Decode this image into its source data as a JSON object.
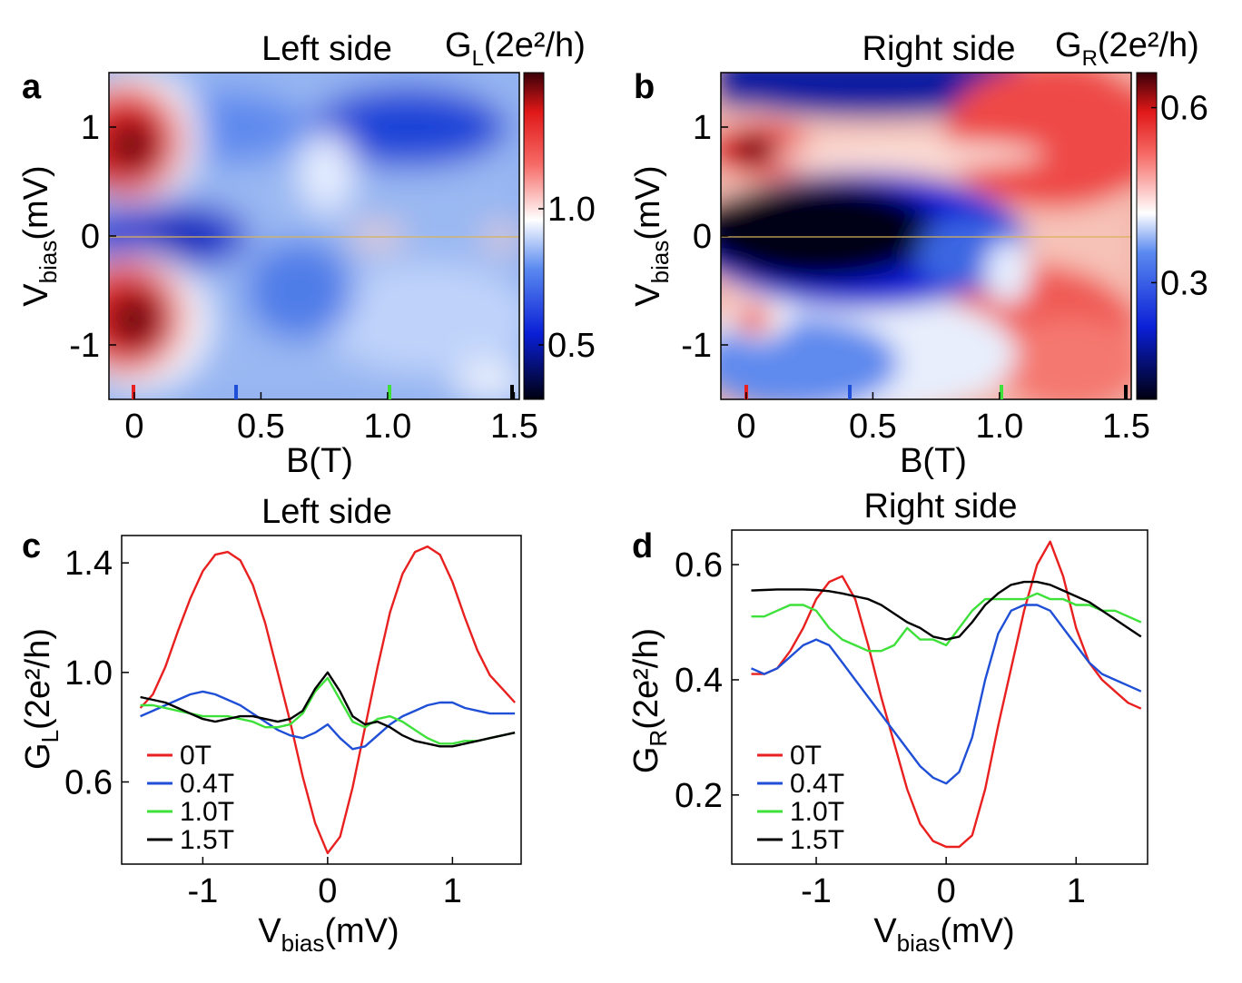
{
  "figure": {
    "panels": [
      "a",
      "b",
      "c",
      "d"
    ]
  },
  "colors": {
    "red": "#e8201f",
    "blue": "#1f4fd6",
    "green": "#3ee03a",
    "black": "#000000"
  },
  "chart_data": [
    {
      "panel": "a",
      "type": "heatmap",
      "title": "Left side",
      "xlabel": "B(T)",
      "ylabel_main": "V",
      "ylabel_sub": "bias",
      "ylabel_unit": "(mV)",
      "xlim": [
        -0.1,
        1.52
      ],
      "ylim": [
        -1.5,
        1.5
      ],
      "xticks": [
        "0",
        "0.5",
        "1.0",
        "1.5"
      ],
      "xtick_values": [
        0,
        0.5,
        1.0,
        1.5
      ],
      "yticks": [
        "1",
        "0",
        "-1"
      ],
      "ytick_values": [
        1,
        0,
        -1
      ],
      "colorbar_label_main": "G",
      "colorbar_label_sub": "L",
      "colorbar_label_unit": "(2e²/h)",
      "colorbar_range": [
        0.3,
        1.5
      ],
      "colorbar_ticks": [
        "1.0",
        "0.5"
      ],
      "colorbar_tick_values": [
        1.0,
        0.5
      ],
      "marker_fields": [
        0,
        0.4,
        1.0,
        1.5
      ],
      "zero_peak_height": 1.0,
      "coherence_peak_height": 1.45
    },
    {
      "panel": "b",
      "type": "heatmap",
      "title": "Right side",
      "xlabel": "B(T)",
      "ylabel_main": "V",
      "ylabel_sub": "bias",
      "ylabel_unit": "(mV)",
      "xlim": [
        -0.1,
        1.52
      ],
      "ylim": [
        -1.5,
        1.5
      ],
      "xticks": [
        "0",
        "0.5",
        "1.0",
        "1.5"
      ],
      "xtick_values": [
        0,
        0.5,
        1.0,
        1.5
      ],
      "yticks": [
        "1",
        "0",
        "-1"
      ],
      "ytick_values": [
        1,
        0,
        -1
      ],
      "colorbar_label_main": "G",
      "colorbar_label_sub": "R",
      "colorbar_label_unit": "(2e²/h)",
      "colorbar_range": [
        0.1,
        0.66
      ],
      "colorbar_ticks": [
        "0.6",
        "0.3"
      ],
      "colorbar_tick_values": [
        0.6,
        0.3
      ],
      "marker_fields": [
        0,
        0.4,
        1.0,
        1.5
      ]
    },
    {
      "panel": "c",
      "type": "line",
      "title": "Left side",
      "xlabel_main": "V",
      "xlabel_sub": "bias",
      "xlabel_unit": "(mV)",
      "ylabel_main": "G",
      "ylabel_sub": "L",
      "ylabel_unit": "(2e²/h)",
      "xlim": [
        -1.65,
        1.55
      ],
      "ylim": [
        0.3,
        1.5
      ],
      "xticks": [
        "-1",
        "0",
        "1"
      ],
      "xtick_values": [
        -1,
        0,
        1
      ],
      "yticks": [
        "1.4",
        "1.0",
        "0.6"
      ],
      "ytick_values": [
        1.4,
        1.0,
        0.6
      ],
      "legend_position": "lower-left",
      "series": [
        {
          "name": "0T",
          "color": "#e8201f",
          "x": [
            -1.5,
            -1.4,
            -1.3,
            -1.2,
            -1.1,
            -1.0,
            -0.9,
            -0.8,
            -0.7,
            -0.6,
            -0.5,
            -0.4,
            -0.3,
            -0.2,
            -0.1,
            0.0,
            0.1,
            0.2,
            0.3,
            0.4,
            0.5,
            0.6,
            0.7,
            0.8,
            0.9,
            1.0,
            1.1,
            1.2,
            1.3,
            1.4,
            1.5
          ],
          "y": [
            0.87,
            0.92,
            1.02,
            1.15,
            1.27,
            1.37,
            1.43,
            1.44,
            1.41,
            1.32,
            1.18,
            1.0,
            0.82,
            0.62,
            0.45,
            0.34,
            0.4,
            0.58,
            0.8,
            1.02,
            1.22,
            1.36,
            1.44,
            1.46,
            1.43,
            1.33,
            1.2,
            1.08,
            0.99,
            0.94,
            0.89
          ]
        },
        {
          "name": "0.4T",
          "color": "#1f4fd6",
          "x": [
            -1.5,
            -1.4,
            -1.3,
            -1.2,
            -1.1,
            -1.0,
            -0.9,
            -0.8,
            -0.7,
            -0.6,
            -0.5,
            -0.4,
            -0.3,
            -0.2,
            -0.1,
            0.0,
            0.1,
            0.2,
            0.3,
            0.4,
            0.5,
            0.6,
            0.7,
            0.8,
            0.9,
            1.0,
            1.1,
            1.2,
            1.3,
            1.4,
            1.5
          ],
          "y": [
            0.84,
            0.86,
            0.88,
            0.9,
            0.92,
            0.93,
            0.92,
            0.9,
            0.88,
            0.85,
            0.82,
            0.79,
            0.77,
            0.76,
            0.78,
            0.81,
            0.76,
            0.72,
            0.73,
            0.77,
            0.81,
            0.84,
            0.86,
            0.88,
            0.89,
            0.89,
            0.87,
            0.86,
            0.85,
            0.85,
            0.85
          ]
        },
        {
          "name": "1.0T",
          "color": "#3ee03a",
          "x": [
            -1.5,
            -1.4,
            -1.3,
            -1.2,
            -1.1,
            -1.0,
            -0.9,
            -0.8,
            -0.7,
            -0.6,
            -0.5,
            -0.4,
            -0.3,
            -0.2,
            -0.1,
            0.0,
            0.1,
            0.2,
            0.3,
            0.4,
            0.5,
            0.6,
            0.7,
            0.8,
            0.9,
            1.0,
            1.1,
            1.2,
            1.3,
            1.4,
            1.5
          ],
          "y": [
            0.88,
            0.88,
            0.87,
            0.86,
            0.85,
            0.84,
            0.84,
            0.84,
            0.83,
            0.82,
            0.8,
            0.8,
            0.81,
            0.85,
            0.93,
            0.98,
            0.9,
            0.82,
            0.8,
            0.83,
            0.84,
            0.82,
            0.79,
            0.76,
            0.74,
            0.74,
            0.75,
            0.75,
            0.76,
            0.77,
            0.78
          ]
        },
        {
          "name": "1.5T",
          "color": "#000000",
          "x": [
            -1.5,
            -1.4,
            -1.3,
            -1.2,
            -1.1,
            -1.0,
            -0.9,
            -0.8,
            -0.7,
            -0.6,
            -0.5,
            -0.4,
            -0.3,
            -0.2,
            -0.1,
            0.0,
            0.1,
            0.2,
            0.3,
            0.4,
            0.5,
            0.6,
            0.7,
            0.8,
            0.9,
            1.0,
            1.1,
            1.2,
            1.3,
            1.4,
            1.5
          ],
          "y": [
            0.91,
            0.9,
            0.89,
            0.87,
            0.85,
            0.83,
            0.82,
            0.83,
            0.84,
            0.84,
            0.83,
            0.82,
            0.83,
            0.86,
            0.94,
            1.0,
            0.93,
            0.84,
            0.81,
            0.82,
            0.8,
            0.77,
            0.75,
            0.74,
            0.73,
            0.73,
            0.74,
            0.75,
            0.76,
            0.77,
            0.78
          ]
        }
      ]
    },
    {
      "panel": "d",
      "type": "line",
      "title": "Right side",
      "xlabel_main": "V",
      "xlabel_sub": "bias",
      "xlabel_unit": "(mV)",
      "ylabel_main": "G",
      "ylabel_sub": "R",
      "ylabel_unit": "(2e²/h)",
      "xlim": [
        -1.65,
        1.55
      ],
      "ylim": [
        0.08,
        0.66
      ],
      "xticks": [
        "-1",
        "0",
        "1"
      ],
      "xtick_values": [
        -1,
        0,
        1
      ],
      "yticks": [
        "0.6",
        "0.4",
        "0.2"
      ],
      "ytick_values": [
        0.6,
        0.4,
        0.2
      ],
      "legend_position": "lower-left",
      "series": [
        {
          "name": "0T",
          "color": "#e8201f",
          "x": [
            -1.5,
            -1.4,
            -1.3,
            -1.2,
            -1.1,
            -1.0,
            -0.9,
            -0.8,
            -0.7,
            -0.6,
            -0.5,
            -0.4,
            -0.3,
            -0.2,
            -0.1,
            0.0,
            0.1,
            0.2,
            0.3,
            0.4,
            0.5,
            0.6,
            0.7,
            0.8,
            0.9,
            1.0,
            1.1,
            1.2,
            1.3,
            1.4,
            1.5
          ],
          "y": [
            0.41,
            0.41,
            0.42,
            0.45,
            0.49,
            0.54,
            0.57,
            0.58,
            0.54,
            0.46,
            0.37,
            0.29,
            0.21,
            0.15,
            0.12,
            0.11,
            0.11,
            0.13,
            0.21,
            0.32,
            0.42,
            0.52,
            0.6,
            0.64,
            0.58,
            0.49,
            0.43,
            0.4,
            0.38,
            0.36,
            0.35
          ]
        },
        {
          "name": "0.4T",
          "color": "#1f4fd6",
          "x": [
            -1.5,
            -1.4,
            -1.3,
            -1.2,
            -1.1,
            -1.0,
            -0.9,
            -0.8,
            -0.7,
            -0.6,
            -0.5,
            -0.4,
            -0.3,
            -0.2,
            -0.1,
            0.0,
            0.1,
            0.2,
            0.3,
            0.4,
            0.5,
            0.6,
            0.7,
            0.8,
            0.9,
            1.0,
            1.1,
            1.2,
            1.3,
            1.4,
            1.5
          ],
          "y": [
            0.42,
            0.41,
            0.42,
            0.44,
            0.46,
            0.47,
            0.46,
            0.43,
            0.4,
            0.37,
            0.34,
            0.31,
            0.28,
            0.25,
            0.23,
            0.22,
            0.24,
            0.3,
            0.4,
            0.48,
            0.52,
            0.53,
            0.53,
            0.52,
            0.49,
            0.46,
            0.43,
            0.41,
            0.4,
            0.39,
            0.38
          ]
        },
        {
          "name": "1.0T",
          "color": "#3ee03a",
          "x": [
            -1.5,
            -1.4,
            -1.3,
            -1.2,
            -1.1,
            -1.0,
            -0.9,
            -0.8,
            -0.7,
            -0.6,
            -0.5,
            -0.4,
            -0.3,
            -0.2,
            -0.1,
            0.0,
            0.1,
            0.2,
            0.3,
            0.4,
            0.5,
            0.6,
            0.7,
            0.8,
            0.9,
            1.0,
            1.1,
            1.2,
            1.3,
            1.4,
            1.5
          ],
          "y": [
            0.51,
            0.51,
            0.52,
            0.53,
            0.53,
            0.52,
            0.49,
            0.47,
            0.46,
            0.45,
            0.45,
            0.46,
            0.49,
            0.47,
            0.47,
            0.46,
            0.49,
            0.52,
            0.54,
            0.54,
            0.54,
            0.54,
            0.55,
            0.54,
            0.54,
            0.53,
            0.53,
            0.52,
            0.52,
            0.51,
            0.5
          ]
        },
        {
          "name": "1.5T",
          "color": "#000000",
          "x": [
            -1.5,
            -1.4,
            -1.3,
            -1.2,
            -1.1,
            -1.0,
            -0.9,
            -0.8,
            -0.7,
            -0.6,
            -0.5,
            -0.4,
            -0.3,
            -0.2,
            -0.1,
            0.0,
            0.1,
            0.2,
            0.3,
            0.4,
            0.5,
            0.6,
            0.7,
            0.8,
            0.9,
            1.0,
            1.1,
            1.2,
            1.3,
            1.4,
            1.5
          ],
          "y": [
            0.555,
            0.556,
            0.557,
            0.557,
            0.557,
            0.556,
            0.554,
            0.55,
            0.545,
            0.54,
            0.53,
            0.515,
            0.5,
            0.49,
            0.475,
            0.47,
            0.475,
            0.5,
            0.53,
            0.55,
            0.565,
            0.57,
            0.57,
            0.565,
            0.555,
            0.545,
            0.535,
            0.52,
            0.505,
            0.49,
            0.475
          ]
        }
      ]
    }
  ]
}
